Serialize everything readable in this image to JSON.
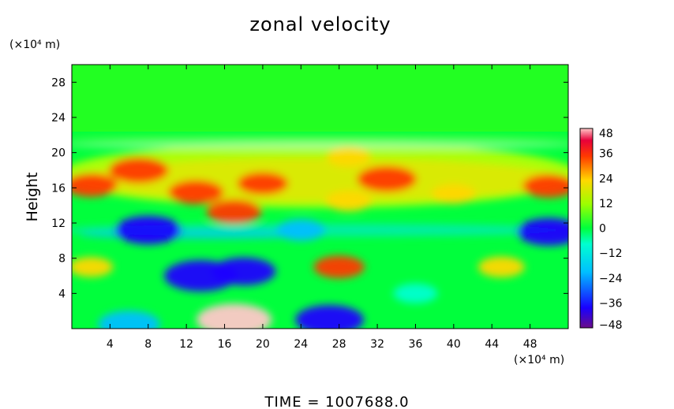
{
  "chart_data": {
    "type": "heatmap",
    "title": "zonal velocity",
    "ylabel": "Height",
    "y_units": "(×10⁴ m)",
    "x_units": "(×10⁴ m)",
    "footer": "TIME  =  1007688.0",
    "xlim": [
      0,
      52
    ],
    "ylim": [
      0,
      30
    ],
    "x_ticks": [
      "4",
      "8",
      "12",
      "16",
      "20",
      "24",
      "28",
      "32",
      "36",
      "40",
      "44",
      "48"
    ],
    "x_tick_values": [
      4,
      8,
      12,
      16,
      20,
      24,
      28,
      32,
      36,
      40,
      44,
      48
    ],
    "y_ticks": [
      "4",
      "8",
      "12",
      "16",
      "20",
      "24",
      "28"
    ],
    "y_tick_values": [
      4,
      8,
      12,
      16,
      20,
      24,
      28
    ],
    "colorbar": {
      "ticks": [
        "48",
        "36",
        "24",
        "12",
        "0",
        "−12",
        "−24",
        "−36",
        "−48"
      ],
      "tick_values": [
        48,
        36,
        24,
        12,
        0,
        -12,
        -24,
        -36,
        -48
      ],
      "range": [
        -48,
        48
      ]
    },
    "field_features": [
      {
        "x": 7,
        "y": 18,
        "value": 34
      },
      {
        "x": 2,
        "y": 16.3,
        "value": 28
      },
      {
        "x": 13,
        "y": 15.5,
        "value": 30
      },
      {
        "x": 17,
        "y": 13.3,
        "value": 30
      },
      {
        "x": 20,
        "y": 16.5,
        "value": 26
      },
      {
        "x": 29,
        "y": 14.5,
        "value": 22
      },
      {
        "x": 33,
        "y": 17,
        "value": 34
      },
      {
        "x": 40,
        "y": 15.3,
        "value": 20
      },
      {
        "x": 50,
        "y": 16.2,
        "value": 28
      },
      {
        "x": 29,
        "y": 19.5,
        "value": 20
      },
      {
        "x": 8,
        "y": 11.2,
        "value": -40
      },
      {
        "x": 24,
        "y": 11.2,
        "value": -24
      },
      {
        "x": 50,
        "y": 11,
        "value": -38
      },
      {
        "x": 18,
        "y": 6.5,
        "value": -38
      },
      {
        "x": 13.5,
        "y": 6,
        "value": -46
      },
      {
        "x": 28,
        "y": 7,
        "value": 26
      },
      {
        "x": 45,
        "y": 7,
        "value": 22
      },
      {
        "x": 36,
        "y": 4,
        "value": -20
      },
      {
        "x": 17,
        "y": 1,
        "value": 48
      },
      {
        "x": 6,
        "y": 0.5,
        "value": -36
      },
      {
        "x": 27,
        "y": 1,
        "value": -42
      },
      {
        "x": 2,
        "y": 7,
        "value": 20
      }
    ]
  }
}
